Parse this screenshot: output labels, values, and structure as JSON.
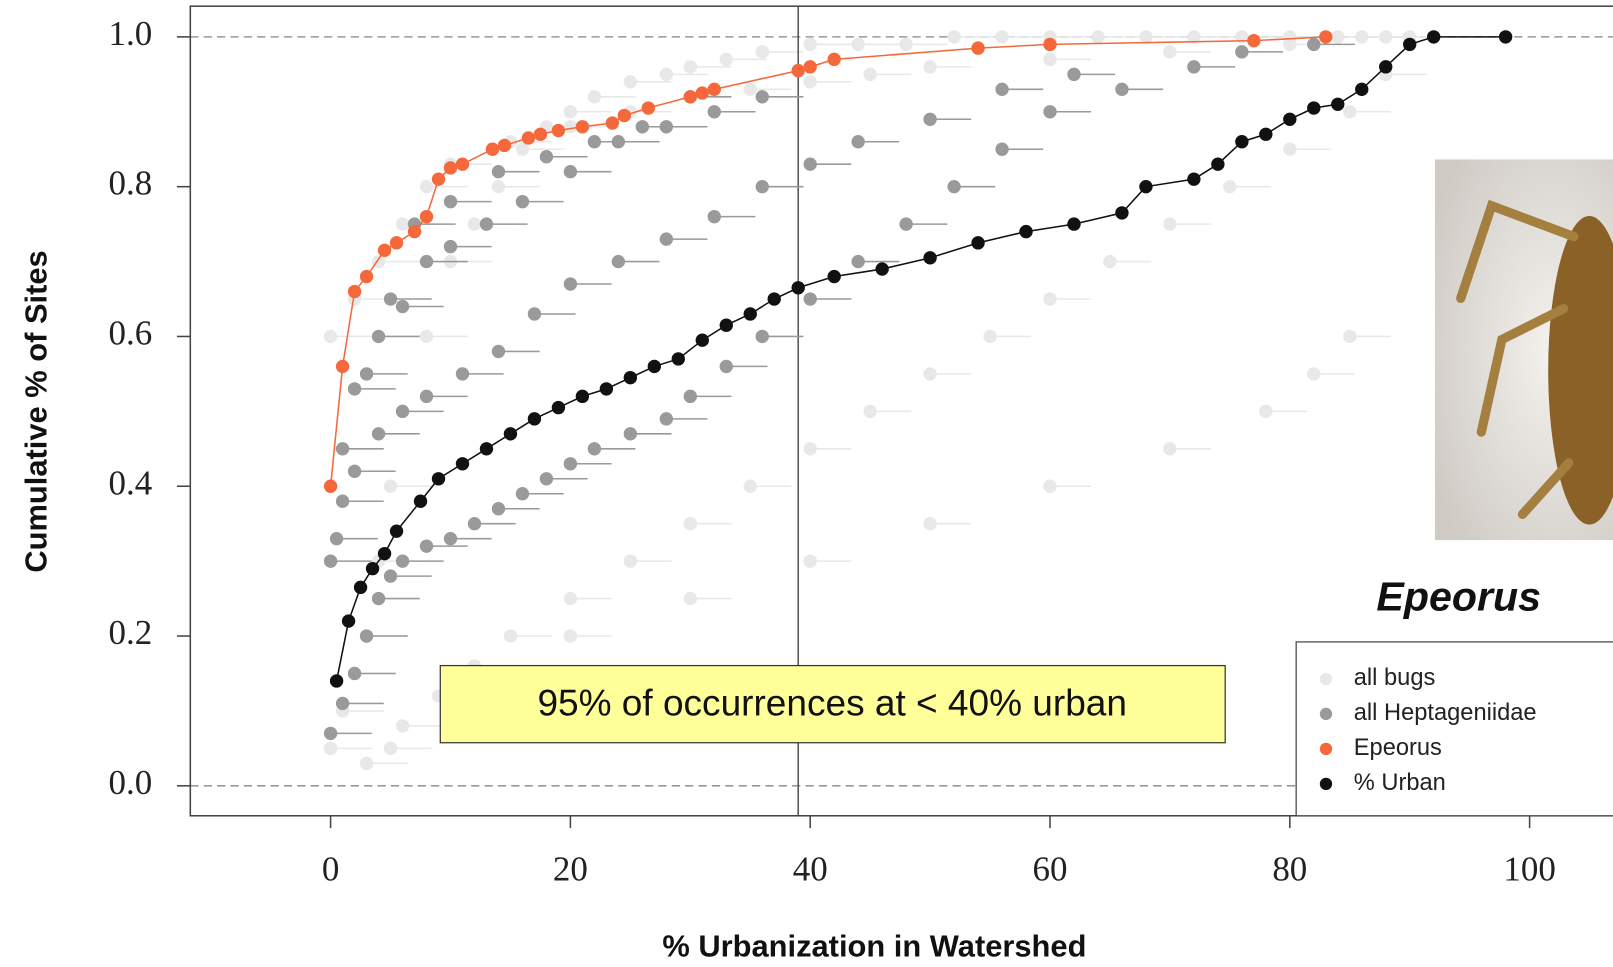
{
  "chart_data": {
    "type": "scatter",
    "x_label": "% Urbanization in Watershed",
    "y_label": "Cumulative % of Sites",
    "annotation": "95% of occurrences at < 40% urban",
    "taxon_label": "Epeorus",
    "xlim": [
      -11.7,
      109.7
    ],
    "ylim": [
      -0.04,
      1.041
    ],
    "xticks": [
      0,
      20,
      40,
      60,
      80,
      100
    ],
    "yticks": [
      {
        "value": 0,
        "label": "0.0"
      },
      0.2,
      0.4,
      0.6,
      0.8,
      {
        "value": 1,
        "label": "1.0"
      }
    ],
    "vline": 39,
    "hlines": [
      0,
      1
    ],
    "legend": "bottom-right",
    "series": [
      {
        "name": "all bugs",
        "color": "#e8e8e8",
        "x": [
          0,
          1,
          2,
          3,
          4,
          5,
          6,
          8,
          10,
          12,
          14,
          16,
          18,
          20,
          22,
          25,
          28,
          30,
          33,
          36,
          40,
          44,
          48,
          52,
          56,
          60,
          64,
          68,
          72,
          76,
          80,
          84,
          86,
          88,
          3,
          6,
          9,
          12,
          15,
          20,
          25,
          30,
          35,
          40,
          45,
          50,
          55,
          60,
          65,
          70,
          75,
          80,
          85,
          88,
          5,
          10,
          15,
          20,
          30,
          40,
          50,
          60,
          70,
          78,
          82,
          85,
          0,
          2,
          4,
          6,
          8,
          10,
          15,
          20,
          25,
          30,
          35,
          40,
          45,
          50,
          60,
          70,
          80,
          90
        ],
        "values": [
          0.05,
          0.1,
          0.15,
          0.2,
          0.3,
          0.4,
          0.5,
          0.6,
          0.7,
          0.75,
          0.8,
          0.85,
          0.88,
          0.9,
          0.92,
          0.94,
          0.95,
          0.96,
          0.97,
          0.98,
          0.99,
          0.99,
          0.99,
          1.0,
          1.0,
          1.0,
          1.0,
          1.0,
          1.0,
          1.0,
          1.0,
          1.0,
          1.0,
          1.0,
          0.03,
          0.08,
          0.12,
          0.16,
          0.2,
          0.25,
          0.3,
          0.35,
          0.4,
          0.45,
          0.5,
          0.55,
          0.6,
          0.65,
          0.7,
          0.75,
          0.8,
          0.85,
          0.9,
          0.95,
          0.05,
          0.1,
          0.15,
          0.2,
          0.25,
          0.3,
          0.35,
          0.4,
          0.45,
          0.5,
          0.55,
          0.6,
          0.6,
          0.65,
          0.7,
          0.75,
          0.8,
          0.83,
          0.86,
          0.88,
          0.9,
          0.92,
          0.93,
          0.94,
          0.95,
          0.96,
          0.97,
          0.98,
          0.99,
          1.0
        ]
      },
      {
        "name": "all Heptageniidae",
        "color": "#9a9a9a",
        "x": [
          0,
          1,
          2,
          3,
          4,
          5,
          6,
          8,
          10,
          12,
          14,
          16,
          18,
          20,
          22,
          25,
          28,
          30,
          33,
          36,
          40,
          44,
          48,
          52,
          56,
          60,
          66,
          72,
          76,
          82,
          0.5,
          2,
          4,
          6,
          8,
          11,
          14,
          17,
          20,
          24,
          28,
          32,
          36,
          40,
          44,
          50,
          56,
          62,
          0,
          1,
          2,
          4,
          6,
          8,
          10,
          13,
          16,
          20,
          24,
          28,
          32,
          36,
          1,
          3,
          5,
          7,
          10,
          14,
          18,
          22,
          26,
          30
        ],
        "values": [
          0.07,
          0.11,
          0.15,
          0.2,
          0.25,
          0.28,
          0.3,
          0.32,
          0.33,
          0.35,
          0.37,
          0.39,
          0.41,
          0.43,
          0.45,
          0.47,
          0.49,
          0.52,
          0.56,
          0.6,
          0.65,
          0.7,
          0.75,
          0.8,
          0.85,
          0.9,
          0.93,
          0.96,
          0.98,
          0.99,
          0.33,
          0.42,
          0.47,
          0.5,
          0.52,
          0.55,
          0.58,
          0.63,
          0.67,
          0.7,
          0.73,
          0.76,
          0.8,
          0.83,
          0.86,
          0.89,
          0.93,
          0.95,
          0.3,
          0.38,
          0.53,
          0.6,
          0.64,
          0.7,
          0.72,
          0.75,
          0.78,
          0.82,
          0.86,
          0.88,
          0.9,
          0.92,
          0.45,
          0.55,
          0.65,
          0.75,
          0.78,
          0.82,
          0.84,
          0.86,
          0.88,
          0.92
        ]
      },
      {
        "name": "Epeorus",
        "color": "#f4683c",
        "x": [
          0,
          1,
          2,
          3,
          4.5,
          5.5,
          7,
          8,
          9,
          10,
          11,
          13.5,
          14.5,
          16.5,
          17.5,
          19,
          21,
          23.5,
          24.5,
          26.5,
          30,
          31,
          32,
          39,
          40,
          42,
          54,
          60,
          77,
          83
        ],
        "values": [
          0.4,
          0.56,
          0.66,
          0.68,
          0.715,
          0.725,
          0.74,
          0.76,
          0.81,
          0.825,
          0.83,
          0.85,
          0.855,
          0.865,
          0.87,
          0.875,
          0.88,
          0.885,
          0.895,
          0.905,
          0.92,
          0.925,
          0.93,
          0.955,
          0.96,
          0.97,
          0.985,
          0.99,
          0.995,
          1.0
        ]
      },
      {
        "name": "% Urban",
        "color": "#111111",
        "x": [
          0.5,
          1.5,
          2.5,
          3.5,
          4.5,
          5.5,
          7.5,
          9,
          11,
          13,
          15,
          17,
          19,
          21,
          23,
          25,
          27,
          29,
          31,
          33,
          35,
          37,
          39,
          42,
          46,
          50,
          54,
          58,
          62,
          66,
          68,
          72,
          74,
          76,
          78,
          80,
          82,
          84,
          86,
          88,
          90,
          92,
          98
        ],
        "values": [
          0.14,
          0.22,
          0.265,
          0.29,
          0.31,
          0.34,
          0.38,
          0.41,
          0.43,
          0.45,
          0.47,
          0.49,
          0.505,
          0.52,
          0.53,
          0.545,
          0.56,
          0.57,
          0.595,
          0.615,
          0.63,
          0.65,
          0.665,
          0.68,
          0.69,
          0.705,
          0.725,
          0.74,
          0.75,
          0.765,
          0.8,
          0.81,
          0.83,
          0.86,
          0.87,
          0.89,
          0.905,
          0.91,
          0.93,
          0.96,
          0.99,
          1.0,
          1.0
        ]
      }
    ]
  }
}
